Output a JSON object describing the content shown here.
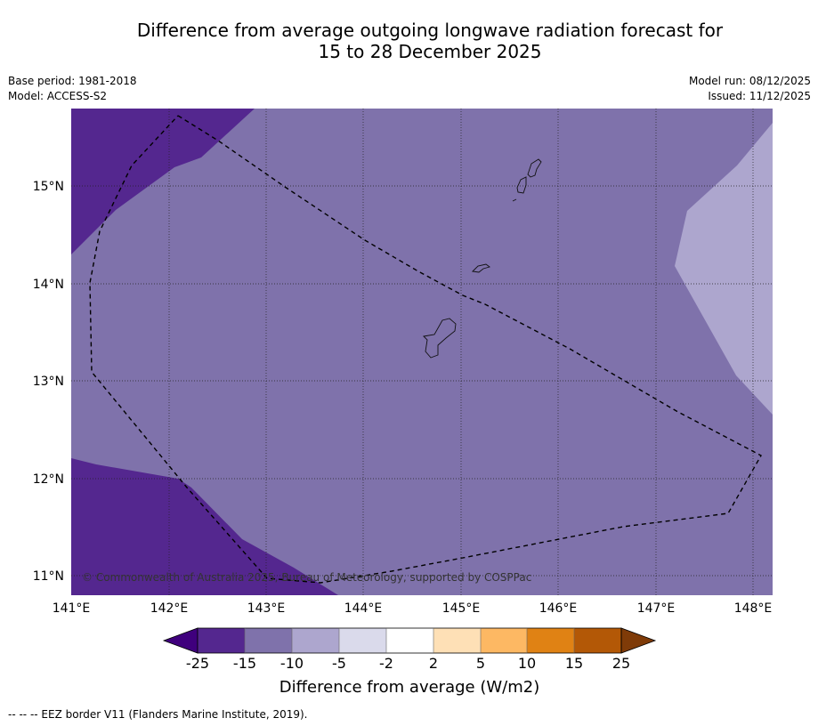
{
  "title": {
    "line1": "Difference from average outgoing longwave radiation forecast for",
    "line2": "15 to 28 December 2025"
  },
  "meta_left": {
    "base_period": "Base period: 1981-2018",
    "model": "Model: ACCESS-S2"
  },
  "meta_right": {
    "model_run": "Model run: 08/12/2025",
    "issued": "Issued: 11/12/2025"
  },
  "map": {
    "lon_ticks": [
      "141°E",
      "142°E",
      "143°E",
      "144°E",
      "145°E",
      "146°E",
      "147°E",
      "148°E"
    ],
    "lat_ticks": [
      "15°N",
      "14°N",
      "13°N",
      "12°N",
      "11°N"
    ],
    "credit": "© Commonwealth of Australia 2025, Bureau of Meteorology, supported by COSPPac",
    "regions": [
      {
        "category": "-25 to -15",
        "color": "#54278f"
      },
      {
        "category": "-15 to -10",
        "color": "#7f72ab"
      },
      {
        "category": "-10 to -5",
        "color": "#ada6ce"
      }
    ]
  },
  "colorbar": {
    "title": "Difference from average (W/m2)",
    "tick_labels": [
      "-25",
      "-15",
      "-10",
      "-5",
      "-2",
      "2",
      "5",
      "10",
      "15",
      "25"
    ],
    "colors": [
      "#3f007d",
      "#54278f",
      "#7f72ab",
      "#ada6ce",
      "#dadaeb",
      "#ffffff",
      "#fee0b6",
      "#fdb863",
      "#e08214",
      "#b35806",
      "#7f3b08"
    ]
  },
  "footer": {
    "legend_text": "--  --  -- EEZ border V11 (Flanders Marine Institute, 2019)."
  }
}
